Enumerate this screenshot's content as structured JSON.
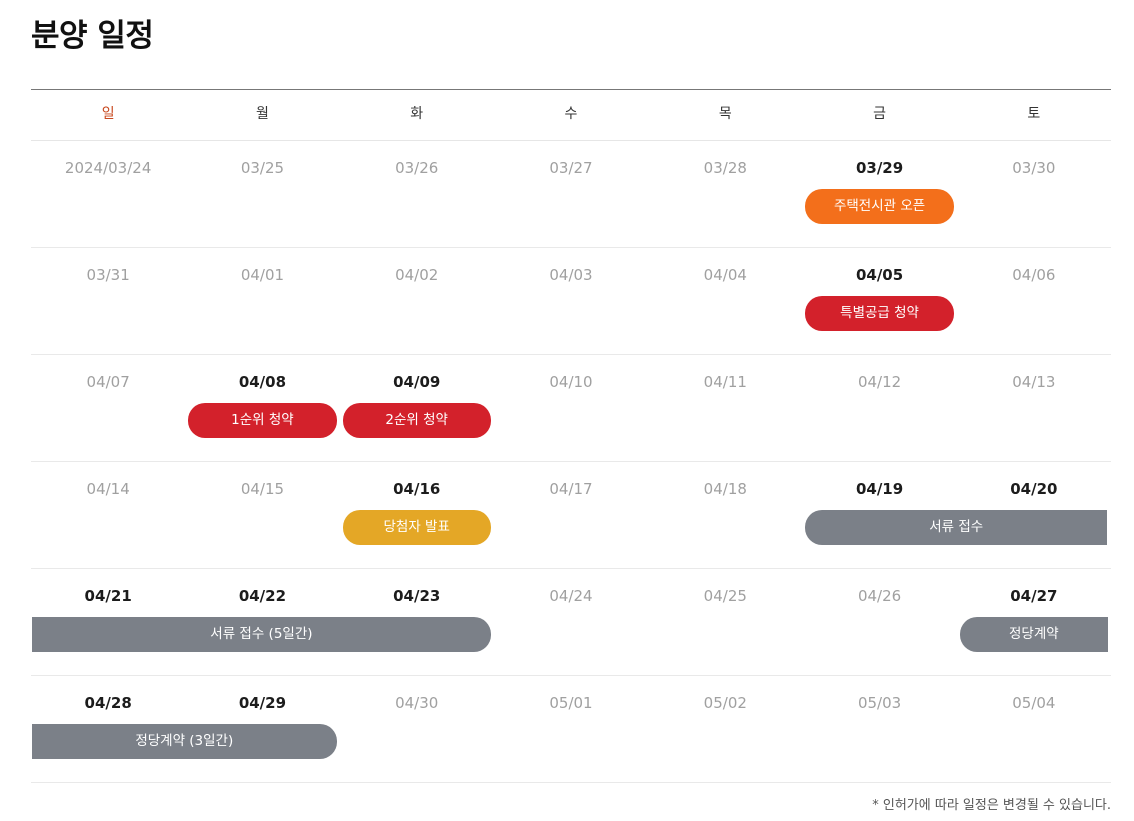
{
  "title": "분양 일정",
  "weekdays": [
    "일",
    "월",
    "화",
    "수",
    "목",
    "금",
    "토"
  ],
  "colors": {
    "sunday": "#c8481e",
    "orange": "#f36f1b",
    "red": "#d3212b",
    "yellow": "#e4a726",
    "gray": "#7b8088"
  },
  "weeks": [
    {
      "days": [
        {
          "label": "2024/03/24",
          "strong": false
        },
        {
          "label": "03/25",
          "strong": false
        },
        {
          "label": "03/26",
          "strong": false
        },
        {
          "label": "03/27",
          "strong": false
        },
        {
          "label": "03/28",
          "strong": false
        },
        {
          "label": "03/29",
          "strong": true
        },
        {
          "label": "03/30",
          "strong": false
        }
      ],
      "events": [
        {
          "label": "주택전시관 오픈",
          "color": "orange",
          "start_day": 5,
          "span_days": 1
        }
      ]
    },
    {
      "days": [
        {
          "label": "03/31",
          "strong": false
        },
        {
          "label": "04/01",
          "strong": false
        },
        {
          "label": "04/02",
          "strong": false
        },
        {
          "label": "04/03",
          "strong": false
        },
        {
          "label": "04/04",
          "strong": false
        },
        {
          "label": "04/05",
          "strong": true
        },
        {
          "label": "04/06",
          "strong": false
        }
      ],
      "events": [
        {
          "label": "특별공급 청약",
          "color": "red",
          "start_day": 5,
          "span_days": 1
        }
      ]
    },
    {
      "days": [
        {
          "label": "04/07",
          "strong": false
        },
        {
          "label": "04/08",
          "strong": true
        },
        {
          "label": "04/09",
          "strong": true
        },
        {
          "label": "04/10",
          "strong": false
        },
        {
          "label": "04/11",
          "strong": false
        },
        {
          "label": "04/12",
          "strong": false
        },
        {
          "label": "04/13",
          "strong": false
        }
      ],
      "events": [
        {
          "label": "1순위 청약",
          "color": "red",
          "start_day": 1,
          "span_days": 1
        },
        {
          "label": "2순위 청약",
          "color": "red",
          "start_day": 2,
          "span_days": 1
        }
      ]
    },
    {
      "days": [
        {
          "label": "04/14",
          "strong": false
        },
        {
          "label": "04/15",
          "strong": false
        },
        {
          "label": "04/16",
          "strong": true
        },
        {
          "label": "04/17",
          "strong": false
        },
        {
          "label": "04/18",
          "strong": false
        },
        {
          "label": "04/19",
          "strong": true
        },
        {
          "label": "04/20",
          "strong": true
        }
      ],
      "events": [
        {
          "label": "당첨자 발표",
          "color": "yellow",
          "start_day": 2,
          "span_days": 1
        },
        {
          "label": "서류 접수",
          "color": "gray",
          "start_day": 5,
          "span_days": 2,
          "continues": "right"
        }
      ]
    },
    {
      "days": [
        {
          "label": "04/21",
          "strong": true
        },
        {
          "label": "04/22",
          "strong": true
        },
        {
          "label": "04/23",
          "strong": true
        },
        {
          "label": "04/24",
          "strong": false
        },
        {
          "label": "04/25",
          "strong": false
        },
        {
          "label": "04/26",
          "strong": false
        },
        {
          "label": "04/27",
          "strong": true
        }
      ],
      "events": [
        {
          "label": "서류 접수 (5일간)",
          "color": "gray",
          "start_day": 0,
          "span_days": 3,
          "continues": "left"
        },
        {
          "label": "정당계약",
          "color": "gray",
          "start_day": 6,
          "span_days": 1,
          "continues": "right"
        }
      ]
    },
    {
      "days": [
        {
          "label": "04/28",
          "strong": true
        },
        {
          "label": "04/29",
          "strong": true
        },
        {
          "label": "04/30",
          "strong": false
        },
        {
          "label": "05/01",
          "strong": false
        },
        {
          "label": "05/02",
          "strong": false
        },
        {
          "label": "05/03",
          "strong": false
        },
        {
          "label": "05/04",
          "strong": false
        }
      ],
      "events": [
        {
          "label": "정당계약 (3일간)",
          "color": "gray",
          "start_day": 0,
          "span_days": 2,
          "continues": "left"
        }
      ]
    }
  ],
  "notice": "* 인허가에 따라 일정은 변경될 수 있습니다."
}
